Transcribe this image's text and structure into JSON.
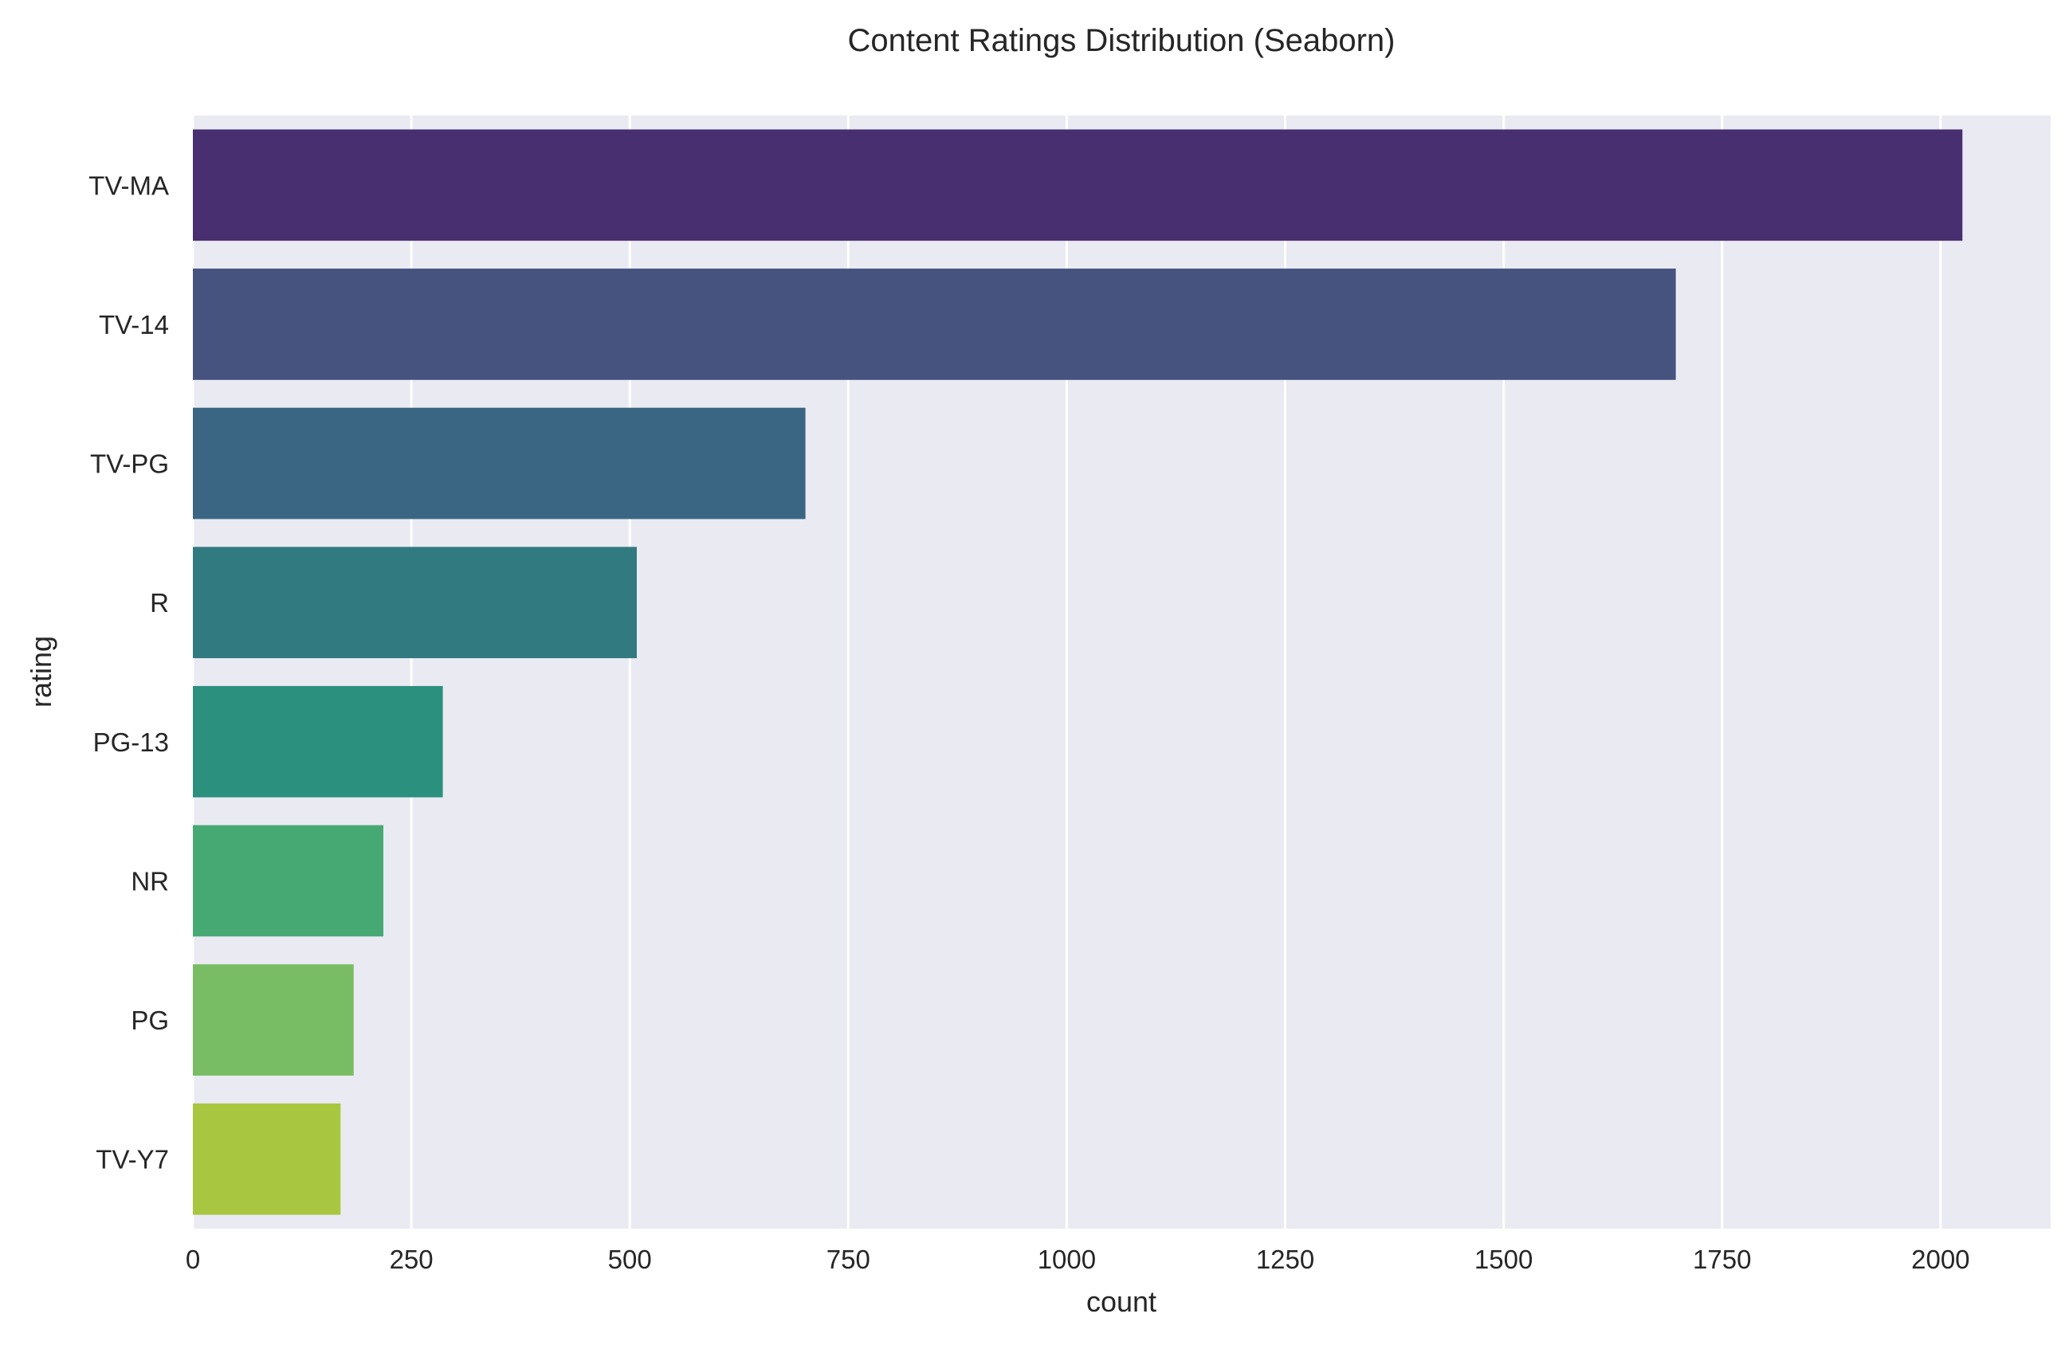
{
  "chart_data": {
    "type": "bar",
    "orientation": "horizontal",
    "title": "Content Ratings Distribution (Seaborn)",
    "xlabel": "count",
    "ylabel": "rating",
    "categories": [
      "TV-MA",
      "TV-14",
      "TV-PG",
      "R",
      "PG-13",
      "NR",
      "PG",
      "TV-Y7"
    ],
    "values": [
      2025,
      1697,
      701,
      508,
      286,
      218,
      184,
      169
    ],
    "xlim": [
      0,
      2126
    ],
    "xticks": [
      0,
      250,
      500,
      750,
      1000,
      1250,
      1500,
      1750,
      2000
    ],
    "grid": true,
    "legend": "none",
    "colors": [
      "#482f70",
      "#46537f",
      "#3b6683",
      "#317a80",
      "#2b907d",
      "#46a974",
      "#78bd63",
      "#a8c63f"
    ],
    "background": "#eaeaf2",
    "grid_color": "#ffffff"
  }
}
